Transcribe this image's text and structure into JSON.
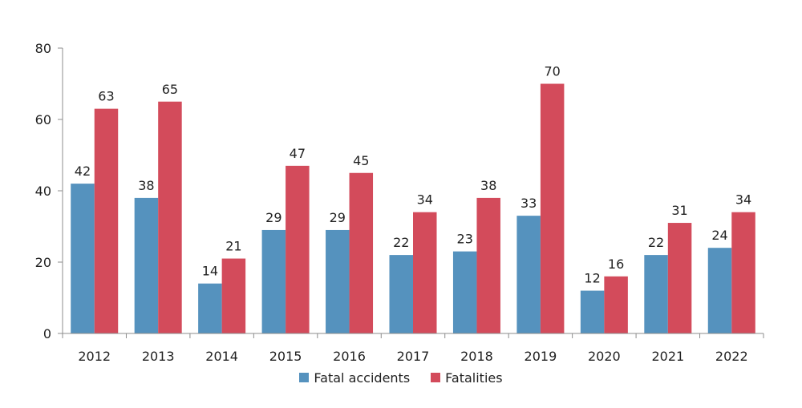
{
  "chart_data": {
    "type": "bar",
    "categories": [
      "2012",
      "2013",
      "2014",
      "2015",
      "2016",
      "2017",
      "2018",
      "2019",
      "2020",
      "2021",
      "2022"
    ],
    "series": [
      {
        "name": "Fatal accidents",
        "color": "#5592BE",
        "values": [
          42,
          38,
          14,
          29,
          29,
          22,
          23,
          33,
          12,
          22,
          24
        ]
      },
      {
        "name": "Fatalities",
        "color": "#D34B5B",
        "values": [
          63,
          65,
          21,
          47,
          45,
          34,
          38,
          70,
          16,
          31,
          34
        ]
      }
    ],
    "ylim": [
      0,
      80
    ],
    "yticks": [
      0,
      20,
      40,
      60,
      80
    ],
    "grid": false,
    "legend_position": "bottom"
  }
}
